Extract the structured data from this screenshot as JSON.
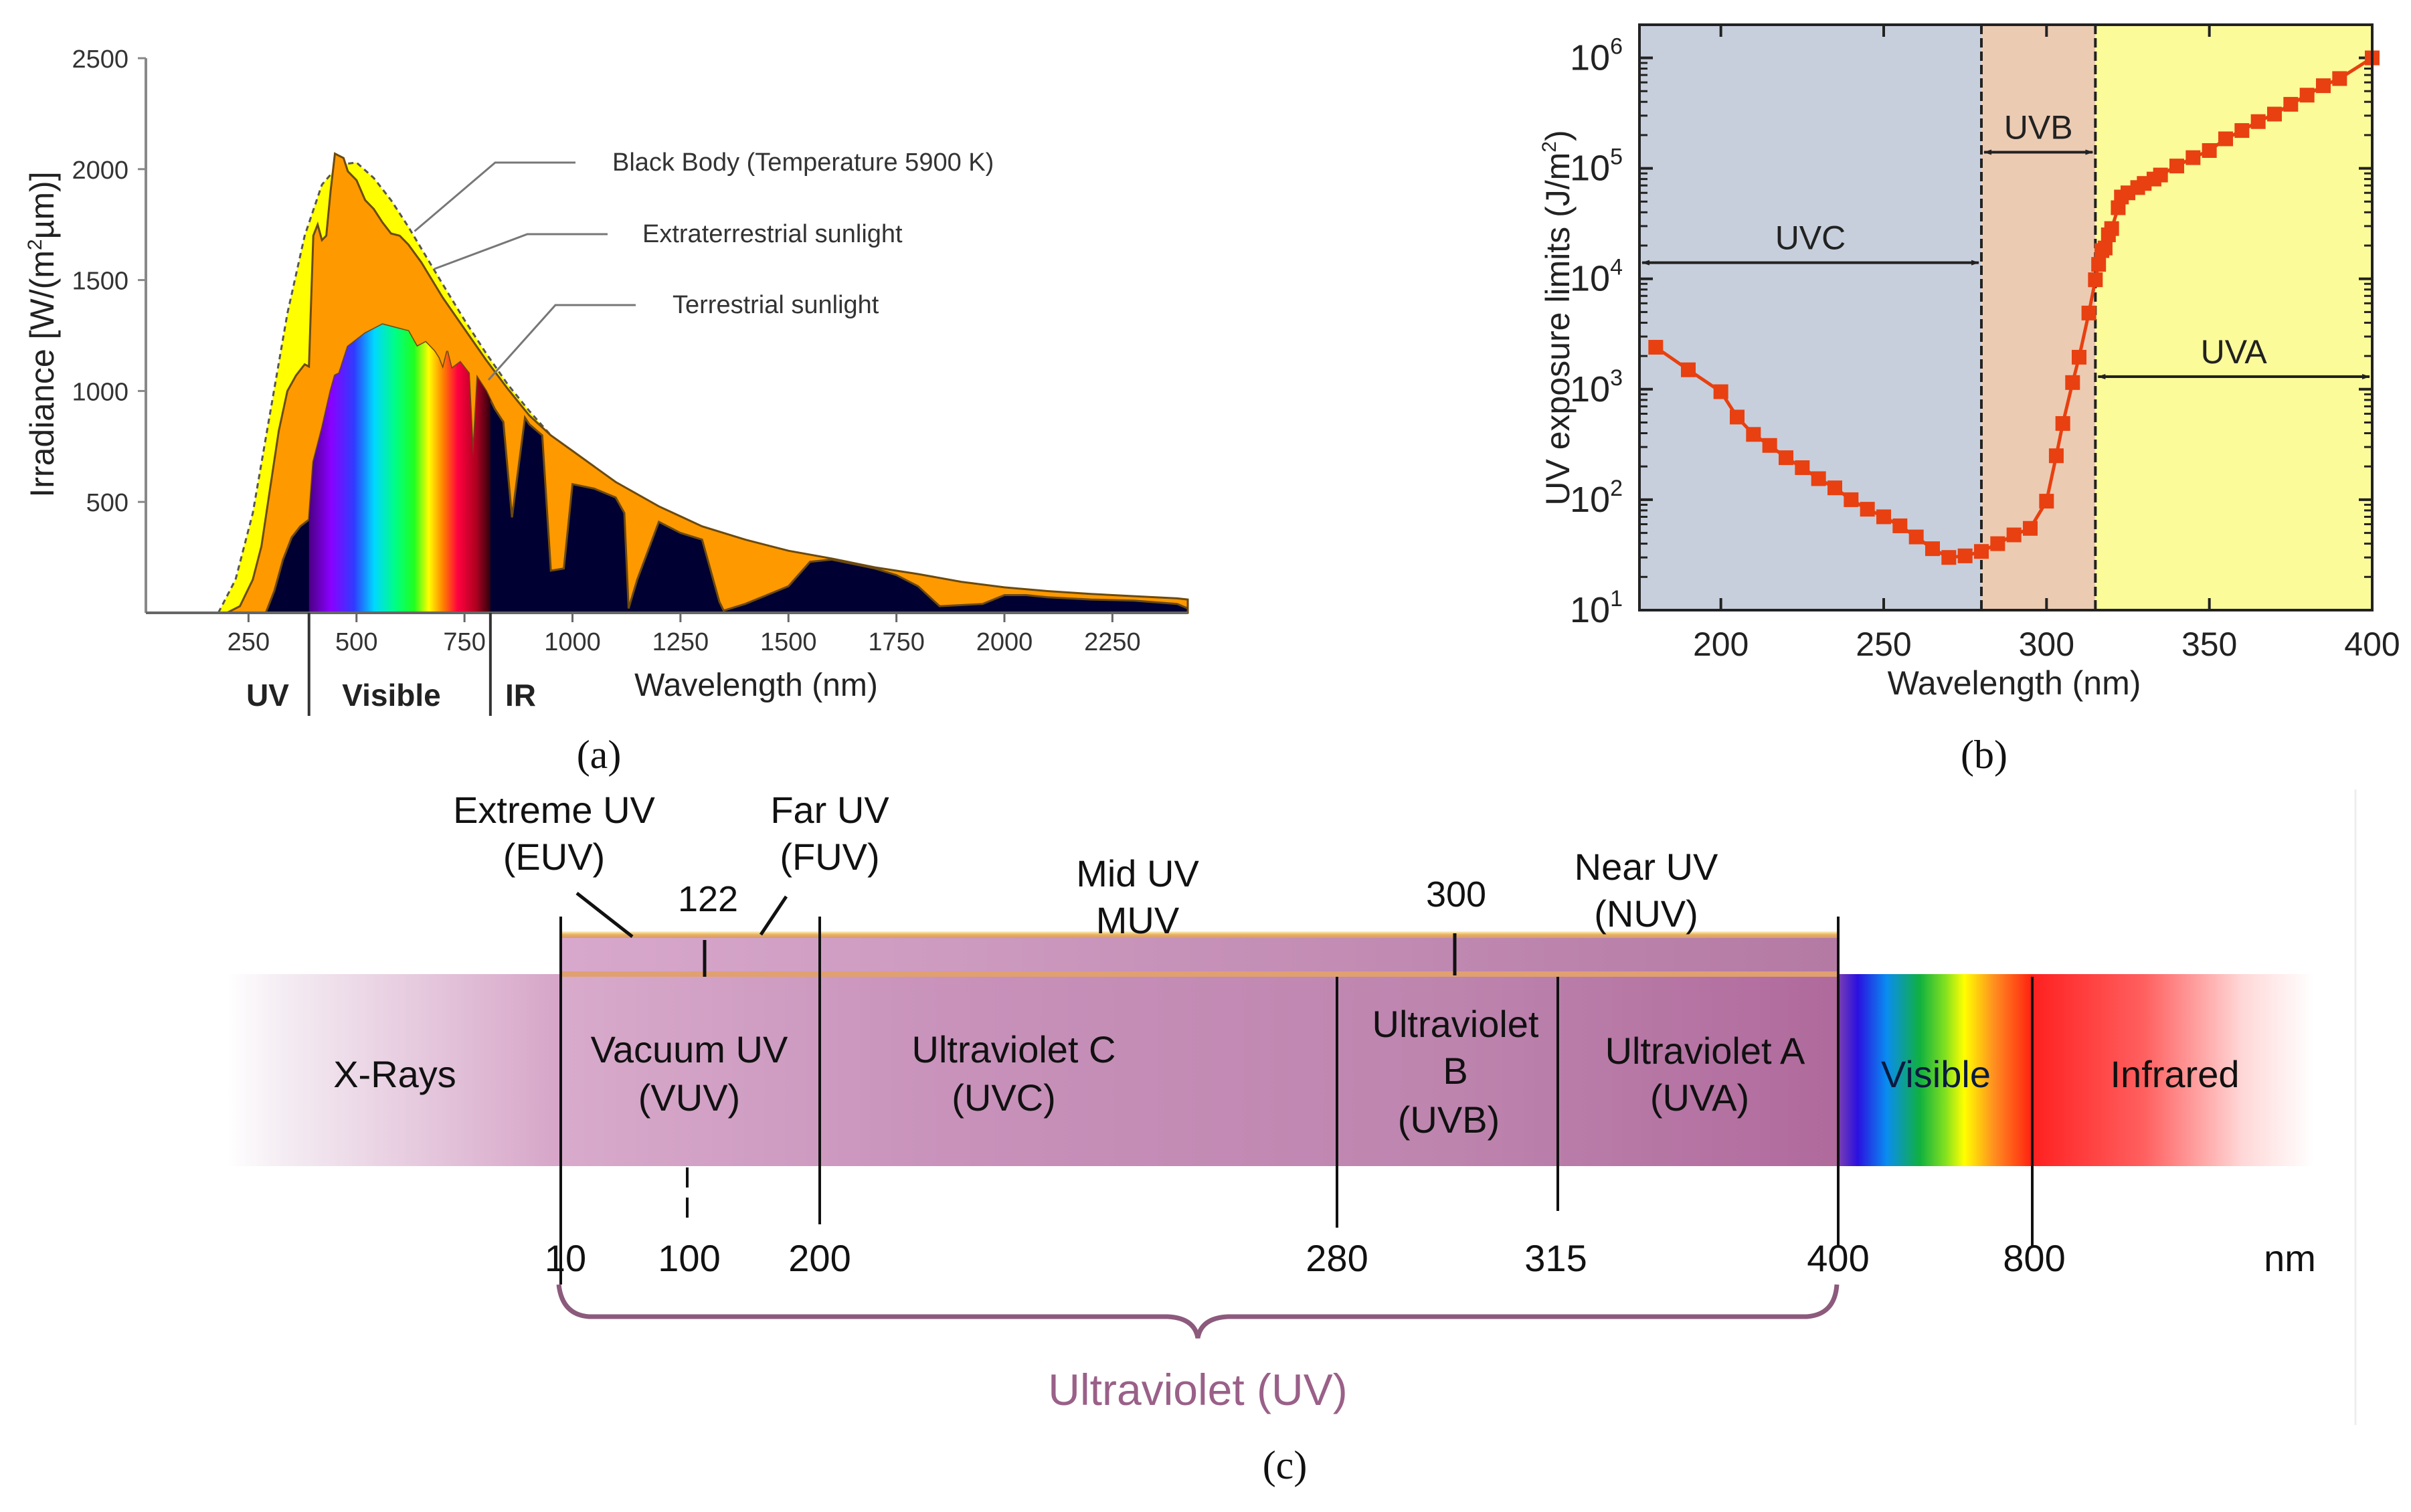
{
  "chart_data": [
    {
      "panel": "a",
      "type": "area",
      "caption": "(a)",
      "xlabel": "Wavelength (nm)",
      "ylabel": "Irradiance [W/(m²µm)]",
      "ylabel_parts": {
        "prefix": "Irradiance [W/(m",
        "sup": "2",
        "suffix": "µm)]"
      },
      "xlim": [
        0,
        2520
      ],
      "ylim": [
        0,
        2500
      ],
      "xticks": [
        250,
        500,
        750,
        1000,
        1250,
        1500,
        1750,
        2000,
        2250
      ],
      "yticks": [
        500,
        1000,
        1500,
        2000,
        2500
      ],
      "region_labels": [
        {
          "label": "UV",
          "from": 0,
          "to": 390
        },
        {
          "label": "Visible",
          "from": 390,
          "to": 810
        },
        {
          "label": "IR",
          "from": 810,
          "to": 2520
        }
      ],
      "region_boundaries": [
        390,
        810
      ],
      "legend": [
        {
          "label": "Black Body (Temperature 5900 K)",
          "series": "black_body"
        },
        {
          "label": "Extraterrestrial sunlight",
          "series": "extraterrestrial"
        },
        {
          "label": "Terrestrial sunlight",
          "series": "terrestrial"
        }
      ],
      "colors": {
        "black_body": "#ffff00",
        "extraterrestrial": "#ff9900",
        "terrestrial": "#000033"
      },
      "series": [
        {
          "name": "Black Body (Temperature 5900 K)",
          "x": [
            180,
            220,
            260,
            300,
            340,
            380,
            420,
            460,
            500,
            540,
            580,
            620,
            660,
            700,
            750,
            800,
            850,
            900,
            950,
            1000,
            1100,
            1200,
            1300,
            1400,
            1500,
            1600,
            1700,
            1800,
            1900,
            2000,
            2100,
            2200,
            2300,
            2400,
            2500
          ],
          "values": [
            0,
            150,
            450,
            900,
            1350,
            1700,
            1930,
            2020,
            2030,
            1960,
            1860,
            1740,
            1610,
            1480,
            1320,
            1170,
            1030,
            910,
            800,
            710,
            560,
            450,
            360,
            295,
            240,
            200,
            165,
            140,
            118,
            100,
            86,
            74,
            64,
            56,
            50
          ]
        },
        {
          "name": "Extraterrestrial sunlight",
          "x": [
            200,
            230,
            260,
            280,
            300,
            320,
            340,
            360,
            380,
            390,
            400,
            410,
            420,
            430,
            440,
            450,
            460,
            470,
            480,
            500,
            520,
            540,
            560,
            580,
            600,
            620,
            650,
            700,
            750,
            800,
            850,
            900,
            950,
            1000,
            1100,
            1200,
            1300,
            1400,
            1500,
            1600,
            1700,
            1800,
            1900,
            2000,
            2100,
            2200,
            2300,
            2400,
            2500
          ],
          "values": [
            0,
            30,
            150,
            300,
            560,
            820,
            1000,
            1070,
            1120,
            1110,
            1700,
            1750,
            1680,
            1700,
            1900,
            2070,
            2060,
            2050,
            1990,
            1950,
            1860,
            1820,
            1760,
            1710,
            1700,
            1660,
            1580,
            1420,
            1280,
            1140,
            1010,
            890,
            800,
            730,
            590,
            480,
            390,
            330,
            280,
            245,
            205,
            175,
            140,
            115,
            98,
            85,
            75,
            65,
            60
          ]
        },
        {
          "name": "Terrestrial sunlight",
          "x": [
            290,
            310,
            330,
            350,
            370,
            390,
            400,
            420,
            440,
            450,
            460,
            480,
            500,
            520,
            540,
            560,
            580,
            600,
            620,
            640,
            660,
            680,
            690,
            700,
            710,
            720,
            740,
            760,
            770,
            780,
            800,
            820,
            840,
            860,
            890,
            900,
            930,
            950,
            980,
            1000,
            1050,
            1100,
            1120,
            1130,
            1150,
            1200,
            1250,
            1300,
            1340,
            1350,
            1400,
            1450,
            1500,
            1550,
            1600,
            1650,
            1700,
            1750,
            1800,
            1850,
            1950,
            2000,
            2050,
            2100,
            2200,
            2300,
            2400,
            2500
          ],
          "values": [
            0,
            100,
            240,
            340,
            390,
            420,
            680,
            830,
            1000,
            1070,
            1080,
            1200,
            1230,
            1260,
            1280,
            1300,
            1290,
            1280,
            1270,
            1200,
            1220,
            1180,
            1150,
            1100,
            1180,
            1100,
            1130,
            1080,
            700,
            1060,
            1000,
            920,
            860,
            430,
            880,
            850,
            800,
            190,
            200,
            580,
            560,
            520,
            450,
            20,
            150,
            410,
            360,
            330,
            50,
            10,
            40,
            80,
            120,
            230,
            240,
            220,
            200,
            170,
            120,
            30,
            40,
            80,
            80,
            70,
            60,
            55,
            40,
            20
          ]
        }
      ]
    },
    {
      "panel": "b",
      "type": "line",
      "caption": "(b)",
      "xlabel": "Wavelength (nm)",
      "ylabel": "UV exposure limits (J/m²)",
      "ylabel_parts": {
        "prefix": "UV exposure limits (J/m",
        "sup": "2",
        "suffix": ")"
      },
      "xlim": [
        175,
        400
      ],
      "ylim_log10": [
        1,
        6.3
      ],
      "yscale": "log",
      "xticks": [
        200,
        250,
        300,
        350,
        400
      ],
      "yticks": [
        {
          "base": "10",
          "exp": "1"
        },
        {
          "base": "10",
          "exp": "2"
        },
        {
          "base": "10",
          "exp": "3"
        },
        {
          "base": "10",
          "exp": "4"
        },
        {
          "base": "10",
          "exp": "5"
        },
        {
          "base": "10",
          "exp": "6"
        }
      ],
      "bands": [
        {
          "label": "UVC",
          "from": 175,
          "to": 280,
          "color": "#c7cfdc",
          "arrow_y": 14000
        },
        {
          "label": "UVB",
          "from": 280,
          "to": 315,
          "color": "#eccbb3",
          "arrow_y": 140000
        },
        {
          "label": "UVA",
          "from": 315,
          "to": 400,
          "color": "#fbfb9a",
          "arrow_y": 1300
        }
      ],
      "boundaries": [
        280,
        315
      ],
      "marker_color": "#e84010",
      "series": [
        {
          "name": "UV exposure limit",
          "x": [
            180,
            190,
            200,
            205,
            210,
            215,
            220,
            225,
            230,
            235,
            240,
            245,
            250,
            255,
            260,
            265,
            270,
            275,
            280,
            285,
            290,
            295,
            300,
            303,
            305,
            308,
            310,
            313,
            315,
            316,
            317,
            318,
            319,
            320,
            322,
            323,
            325,
            328,
            330,
            333,
            335,
            340,
            345,
            350,
            355,
            360,
            365,
            370,
            375,
            380,
            385,
            390,
            400
          ],
          "values": [
            2400,
            1500,
            950,
            560,
            390,
            310,
            240,
            195,
            155,
            128,
            100,
            82,
            70,
            58,
            46,
            36,
            30,
            31,
            34,
            40,
            48,
            55,
            97,
            250,
            490,
            1150,
            1950,
            4900,
            9800,
            13500,
            18000,
            19000,
            25000,
            28500,
            44000,
            55000,
            60000,
            67000,
            73000,
            80000,
            87000,
            105000,
            125000,
            145000,
            185000,
            220000,
            265000,
            310000,
            380000,
            460000,
            560000,
            650000,
            1000000
          ]
        }
      ]
    },
    {
      "panel": "c",
      "type": "diagram",
      "caption": "(c)",
      "unit": "nm",
      "top_labels": [
        {
          "line1": "Extreme UV",
          "line2": "(EUV)"
        },
        {
          "line1": "Far UV",
          "line2": "(FUV)"
        },
        {
          "line1": "Mid UV",
          "line2": "MUV"
        },
        {
          "line1": "Near UV",
          "line2": "(NUV)"
        }
      ],
      "top_ticks": [
        "122",
        "300"
      ],
      "band_labels": [
        {
          "line1": "X-Rays"
        },
        {
          "line1": "Vacuum UV",
          "line2": "(VUV)"
        },
        {
          "line1": "Ultraviolet C",
          "line2": "(UVC)"
        },
        {
          "line1": "Ultraviolet",
          "line2": "B",
          "line3": "(UVB)"
        },
        {
          "line1": "Ultraviolet A",
          "line2": "(UVA)"
        },
        {
          "line1": "Visible"
        },
        {
          "line1": "Infrared"
        }
      ],
      "bottom_ticks": [
        "10",
        "100",
        "200",
        "280",
        "315",
        "400",
        "800"
      ],
      "bracket_label": "Ultraviolet (UV)",
      "colors": {
        "uv_band": "#c48db4",
        "bracket": "#8c5a7c",
        "edge": "#e6a76a"
      }
    }
  ]
}
